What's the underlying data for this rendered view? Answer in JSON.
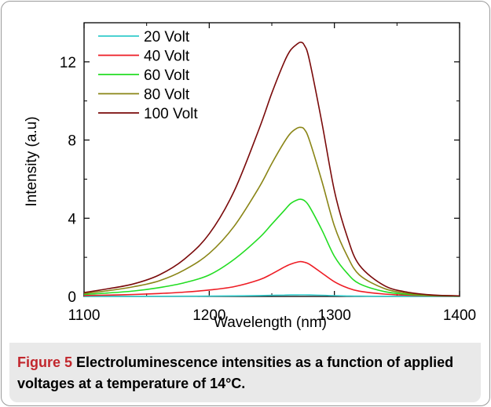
{
  "caption": {
    "figure_number": "Figure 5",
    "text": "Electroluminescence intensities as a function of applied voltages at a temperature of 14°C."
  },
  "colors": {
    "20 Volt": "#33cccc",
    "40 Volt": "#ee1c24",
    "60 Volt": "#22dd22",
    "80 Volt": "#8a8516",
    "100 Volt": "#7a0a0a"
  },
  "chart_data": {
    "type": "line",
    "title": "",
    "xlabel": "Wavelength (nm)",
    "ylabel": "Intensity (a.u)",
    "xlim": [
      1100,
      1400
    ],
    "ylim": [
      0,
      14
    ],
    "xticks": [
      "1100",
      "1200",
      "1300",
      "1400"
    ],
    "yticks": [
      "0",
      "4",
      "8",
      "12"
    ],
    "grid": false,
    "legend_position": "top-left",
    "peak_wavelength": 1273,
    "x": [
      1100,
      1120,
      1140,
      1160,
      1180,
      1200,
      1220,
      1240,
      1250,
      1260,
      1265,
      1270,
      1273,
      1276,
      1280,
      1290,
      1300,
      1310,
      1320,
      1340,
      1360,
      1380,
      1400
    ],
    "series": [
      {
        "name": "20 Volt",
        "values": [
          0.002,
          0.003,
          0.005,
          0.008,
          0.012,
          0.018,
          0.028,
          0.045,
          0.058,
          0.07,
          0.075,
          0.078,
          0.08,
          0.079,
          0.076,
          0.06,
          0.04,
          0.025,
          0.015,
          0.007,
          0.004,
          0.002,
          0.001
        ]
      },
      {
        "name": "40 Volt",
        "values": [
          0.05,
          0.07,
          0.1,
          0.15,
          0.22,
          0.33,
          0.5,
          0.85,
          1.15,
          1.5,
          1.65,
          1.75,
          1.78,
          1.75,
          1.65,
          1.2,
          0.75,
          0.45,
          0.27,
          0.12,
          0.06,
          0.03,
          0.02
        ]
      },
      {
        "name": "60 Volt",
        "values": [
          0.1,
          0.18,
          0.28,
          0.45,
          0.7,
          1.1,
          1.9,
          3.0,
          3.7,
          4.4,
          4.75,
          4.93,
          4.97,
          4.9,
          4.6,
          3.4,
          2.05,
          1.2,
          0.65,
          0.25,
          0.1,
          0.04,
          0.02
        ]
      },
      {
        "name": "80 Volt",
        "values": [
          0.15,
          0.3,
          0.5,
          0.8,
          1.35,
          2.2,
          3.6,
          5.6,
          6.8,
          7.9,
          8.35,
          8.6,
          8.65,
          8.55,
          8.0,
          5.9,
          3.6,
          2.1,
          1.1,
          0.4,
          0.15,
          0.06,
          0.03
        ]
      },
      {
        "name": "100 Volt",
        "values": [
          0.2,
          0.4,
          0.65,
          1.1,
          1.9,
          3.2,
          5.4,
          8.6,
          10.4,
          12.0,
          12.6,
          12.9,
          13.0,
          12.85,
          12.1,
          8.9,
          5.4,
          3.1,
          1.6,
          0.55,
          0.2,
          0.07,
          0.03
        ]
      }
    ]
  }
}
